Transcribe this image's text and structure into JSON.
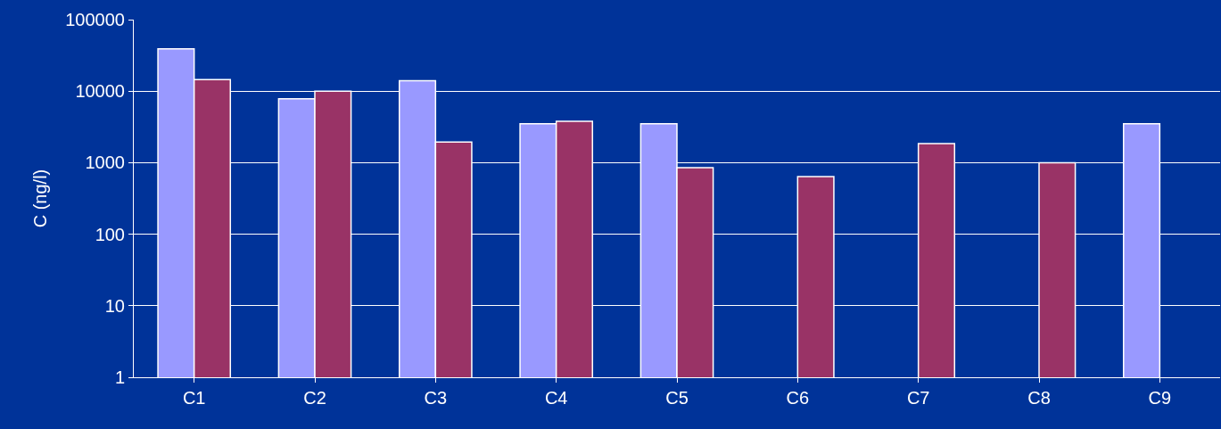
{
  "chart_data": {
    "type": "bar",
    "ylabel": "C (ng/l)",
    "categories": [
      "C1",
      "C2",
      "C3",
      "C4",
      "C5",
      "C6",
      "C7",
      "C8",
      "C9"
    ],
    "series": [
      {
        "color": "#9999ff",
        "values": [
          39000,
          7800,
          14000,
          3500,
          3500,
          null,
          null,
          null,
          3500
        ]
      },
      {
        "color": "#993366",
        "values": [
          14500,
          10000,
          1950,
          3800,
          850,
          640,
          1850,
          1000,
          null
        ]
      }
    ],
    "log": true,
    "ylim": [
      1,
      100000
    ],
    "yticks": [
      1,
      10,
      100,
      1000,
      10000,
      100000
    ],
    "grid": "y"
  }
}
